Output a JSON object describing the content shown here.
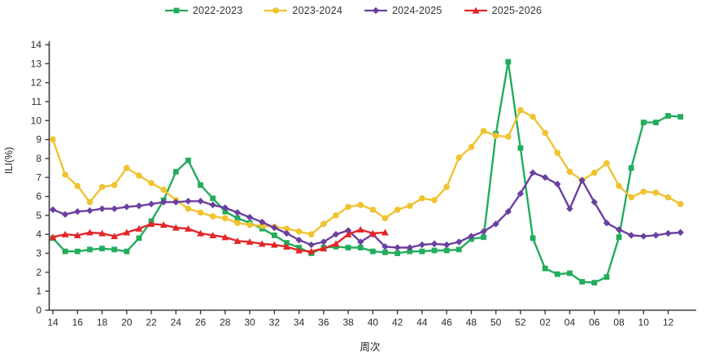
{
  "page": {
    "background": "#ffffff",
    "text_color": "#333333",
    "axis_color": "#3a3a3a"
  },
  "chart_data": {
    "type": "line",
    "title": "",
    "xlabel": "周次",
    "ylabel": "ILI(%)",
    "ylim": [
      0,
      14
    ],
    "y_tick_step": 1,
    "grid": false,
    "legend_position": "top-center",
    "x_categories": [
      "14",
      "15",
      "16",
      "17",
      "18",
      "19",
      "20",
      "21",
      "22",
      "23",
      "24",
      "25",
      "26",
      "27",
      "28",
      "29",
      "30",
      "31",
      "32",
      "33",
      "34",
      "35",
      "36",
      "37",
      "38",
      "39",
      "40",
      "41",
      "42",
      "43",
      "44",
      "45",
      "46",
      "47",
      "48",
      "49",
      "50",
      "51",
      "52",
      "01",
      "02",
      "03",
      "04",
      "05",
      "06",
      "07",
      "08",
      "09",
      "10",
      "11",
      "12",
      "13"
    ],
    "x_tick_labels": [
      "14",
      "16",
      "18",
      "20",
      "22",
      "24",
      "26",
      "28",
      "30",
      "32",
      "34",
      "36",
      "38",
      "40",
      "42",
      "44",
      "46",
      "48",
      "50",
      "52",
      "02",
      "04",
      "06",
      "08",
      "10",
      "12"
    ],
    "series": [
      {
        "name": "2022-2023",
        "color": "#22AC5D",
        "marker": "square",
        "values": [
          3.8,
          3.1,
          3.1,
          3.2,
          3.25,
          3.2,
          3.1,
          3.8,
          4.7,
          5.8,
          7.3,
          7.9,
          6.6,
          5.9,
          5.2,
          4.85,
          4.6,
          4.3,
          3.95,
          3.55,
          3.3,
          3.0,
          3.3,
          3.35,
          3.3,
          3.3,
          3.1,
          3.05,
          3.0,
          3.1,
          3.1,
          3.15,
          3.15,
          3.2,
          3.75,
          3.85,
          9.3,
          13.1,
          8.55,
          3.8,
          2.2,
          1.9,
          1.95,
          1.5,
          1.45,
          1.75,
          3.85,
          7.5,
          9.9,
          9.9,
          10.25,
          10.2
        ]
      },
      {
        "name": "2023-2024",
        "color": "#F0C330",
        "marker": "circle",
        "values": [
          9.0,
          7.15,
          6.55,
          5.7,
          6.5,
          6.6,
          7.5,
          7.1,
          6.7,
          6.35,
          5.8,
          5.35,
          5.15,
          4.95,
          4.85,
          4.6,
          4.5,
          4.45,
          4.4,
          4.3,
          4.15,
          4.0,
          4.55,
          5.0,
          5.45,
          5.55,
          5.3,
          4.85,
          5.3,
          5.5,
          5.9,
          5.8,
          6.5,
          8.05,
          8.6,
          9.45,
          9.2,
          9.15,
          10.55,
          10.2,
          9.35,
          8.3,
          7.3,
          6.85,
          7.25,
          7.75,
          6.55,
          5.95,
          6.25,
          6.2,
          5.95,
          5.6
        ]
      },
      {
        "name": "2024-2025",
        "color": "#6B3FA0",
        "marker": "diamond",
        "values": [
          5.3,
          5.05,
          5.2,
          5.25,
          5.35,
          5.35,
          5.45,
          5.5,
          5.6,
          5.7,
          5.7,
          5.75,
          5.75,
          5.55,
          5.4,
          5.15,
          4.9,
          4.65,
          4.35,
          4.05,
          3.7,
          3.45,
          3.6,
          4.0,
          4.2,
          3.6,
          4.0,
          3.35,
          3.3,
          3.3,
          3.45,
          3.5,
          3.45,
          3.6,
          3.9,
          4.15,
          4.55,
          5.2,
          6.15,
          7.25,
          7.0,
          6.65,
          5.35,
          6.85,
          5.7,
          4.6,
          4.25,
          3.95,
          3.9,
          3.95,
          4.05,
          4.1
        ]
      },
      {
        "name": "2025-2026",
        "color": "#E32528",
        "marker": "triangle-up",
        "values": [
          3.85,
          4.0,
          3.95,
          4.1,
          4.05,
          3.9,
          4.1,
          4.3,
          4.55,
          4.5,
          4.35,
          4.3,
          4.05,
          3.95,
          3.85,
          3.65,
          3.6,
          3.5,
          3.45,
          3.35,
          3.15,
          3.1,
          3.25,
          3.5,
          4.0,
          4.25,
          4.05,
          4.1
        ]
      }
    ]
  }
}
